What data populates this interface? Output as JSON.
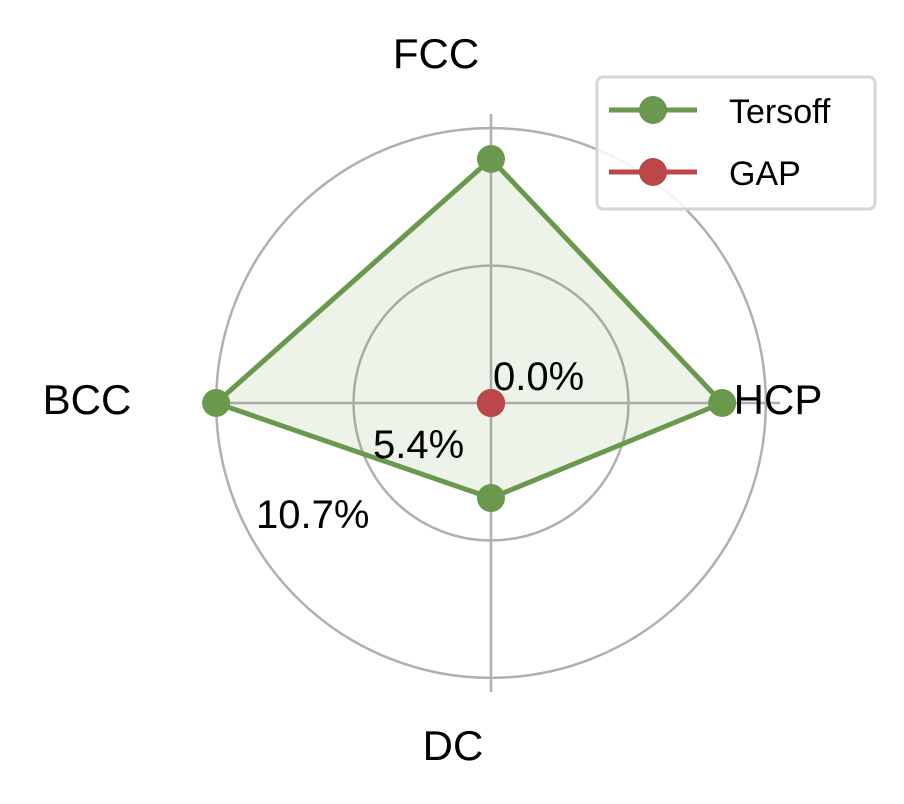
{
  "chart_data": {
    "type": "radar",
    "categories": [
      "FCC",
      "HCP",
      "DC",
      "BCC"
    ],
    "series": [
      {
        "name": "Tersoff",
        "values": [
          9.5,
          9.0,
          3.7,
          10.7
        ],
        "color": "#6a994e",
        "fill": true
      },
      {
        "name": "GAP",
        "values": [
          0,
          0,
          0,
          0
        ],
        "color": "#bc4749",
        "fill": false
      }
    ],
    "r_ticks": [
      0,
      5.35,
      10.7
    ],
    "r_tick_labels": [
      "0.0%",
      "5.4%",
      "10.7%"
    ],
    "rlim": [
      0,
      11.25
    ],
    "grid": true,
    "legend_position": "top-right",
    "title": ""
  }
}
